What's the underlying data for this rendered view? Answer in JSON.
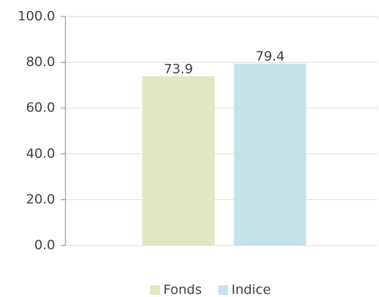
{
  "chart_data": {
    "type": "bar",
    "categories": [
      null
    ],
    "series": [
      {
        "name": "Fonds",
        "color": "#e1e7c1",
        "values": [
          73.9
        ]
      },
      {
        "name": "Indice",
        "color": "#c6e2e9",
        "values": [
          79.4
        ]
      }
    ],
    "ylim": [
      0,
      100
    ],
    "yticks": [
      {
        "value": 0,
        "label": "0.0"
      },
      {
        "value": 20,
        "label": "20.0"
      },
      {
        "value": 40,
        "label": "40.0"
      },
      {
        "value": 60,
        "label": "60.0"
      },
      {
        "value": 80,
        "label": "80.0"
      },
      {
        "value": 100,
        "label": "100.0"
      }
    ],
    "grid": true,
    "legend": "bottom"
  }
}
